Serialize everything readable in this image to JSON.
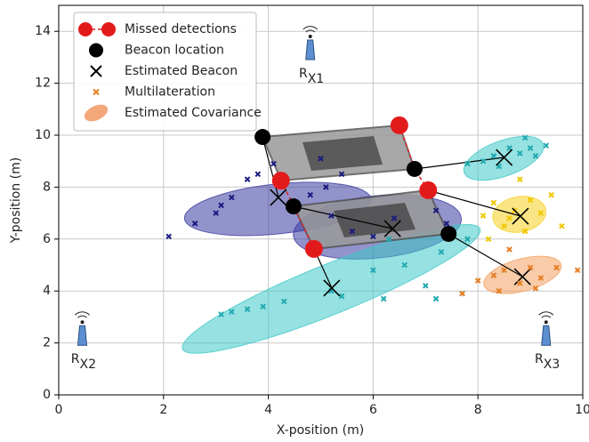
{
  "chart_data": {
    "type": "scatter",
    "xlabel": "X-position (m)",
    "ylabel": "Y-position (m)",
    "xlim": [
      0,
      10
    ],
    "ylim": [
      0,
      15
    ],
    "xticks": [
      0,
      2,
      4,
      6,
      8,
      10
    ],
    "yticks": [
      0,
      2,
      4,
      6,
      8,
      10,
      12,
      14
    ],
    "grid": true,
    "legend": "upper left",
    "series": [
      {
        "name": "Missed detections",
        "color": "#e31a1c",
        "x": [
          6.5,
          4.24,
          7.05,
          4.87
        ],
        "values": [
          10.38,
          8.25,
          7.88,
          5.62
        ]
      },
      {
        "name": "Beacon location",
        "color": "#000000",
        "x": [
          3.89,
          4.48,
          6.79,
          7.44
        ],
        "values": [
          9.93,
          7.26,
          8.7,
          6.2
        ]
      },
      {
        "name": "Estimated Beacon",
        "color": "#000000",
        "x": [
          4.19,
          6.37,
          5.21,
          8.5,
          8.81,
          8.85
        ],
        "values": [
          7.6,
          6.4,
          4.11,
          9.14,
          6.88,
          4.55
        ]
      },
      {
        "name": "Multilateration",
        "color": "#e67e22",
        "x": [
          7.7,
          8.0,
          8.3,
          8.5,
          8.8,
          9.0,
          9.2,
          9.5,
          9.9,
          8.6,
          9.1,
          8.4
        ],
        "values": [
          3.9,
          4.4,
          4.6,
          4.8,
          4.3,
          4.9,
          4.5,
          4.9,
          4.8,
          5.6,
          4.1,
          4.0
        ]
      },
      {
        "name": "Estimated Covariance",
        "color": "#f4a77a",
        "ellipses": [
          {
            "x": 4.18,
            "y": 7.16,
            "rx": 1.79,
            "ry": 0.96,
            "angle": -6,
            "color": "#3b3ba0"
          },
          {
            "x": 6.08,
            "y": 6.47,
            "rx": 1.61,
            "ry": 1.2,
            "angle": -6,
            "color": "#3b3ba0"
          },
          {
            "x": 5.2,
            "y": 4.08,
            "rx": 3.06,
            "ry": 0.96,
            "angle": -22,
            "color": "#40c8c8"
          },
          {
            "x": 8.49,
            "y": 9.11,
            "rx": 0.8,
            "ry": 0.68,
            "angle": -20,
            "color": "#40c8c8"
          },
          {
            "x": 8.79,
            "y": 6.95,
            "rx": 0.51,
            "ry": 0.68,
            "angle": -10,
            "color": "#f5d020"
          },
          {
            "x": 8.85,
            "y": 4.62,
            "rx": 0.76,
            "ry": 0.62,
            "angle": -15,
            "color": "#f4a060"
          }
        ]
      }
    ],
    "clusters": [
      {
        "color": "#1a1a80",
        "x": [
          2.1,
          2.6,
          3.0,
          3.3,
          3.6,
          3.8,
          4.1,
          5.0,
          5.4,
          4.8,
          5.2,
          5.6,
          6.0,
          6.4,
          7.2,
          7.4,
          5.1,
          3.1
        ],
        "values": [
          6.1,
          6.6,
          7.0,
          7.6,
          8.3,
          8.5,
          8.9,
          9.1,
          8.5,
          7.7,
          6.9,
          6.3,
          6.1,
          6.8,
          7.1,
          6.6,
          8.0,
          7.3
        ]
      },
      {
        "color": "#20a8b0",
        "x": [
          3.1,
          3.3,
          3.6,
          3.9,
          4.3,
          5.4,
          6.2,
          7.0,
          7.2,
          7.7,
          6.0,
          6.6,
          7.3,
          7.8,
          5.2,
          6.3
        ],
        "values": [
          3.1,
          3.2,
          3.3,
          3.4,
          3.6,
          3.8,
          3.7,
          4.2,
          3.7,
          3.9,
          4.8,
          5.0,
          5.5,
          6.0,
          4.0,
          6.0
        ]
      },
      {
        "color": "#20a8b0",
        "x": [
          7.8,
          8.1,
          8.3,
          8.6,
          8.8,
          9.0,
          9.3,
          8.9,
          8.4,
          9.1
        ],
        "values": [
          8.9,
          9.0,
          9.2,
          9.5,
          9.3,
          9.5,
          9.6,
          9.9,
          8.8,
          9.2
        ]
      },
      {
        "color": "#f0c800",
        "x": [
          8.1,
          8.3,
          8.5,
          8.7,
          8.9,
          9.0,
          9.2,
          9.4,
          8.2,
          8.8,
          9.6,
          8.6
        ],
        "values": [
          6.9,
          7.4,
          6.5,
          7.1,
          6.3,
          7.5,
          7.0,
          7.7,
          6.0,
          8.3,
          6.5,
          6.8
        ]
      }
    ],
    "antennas": [
      {
        "label": "R",
        "sub": "X1",
        "x": 4.8,
        "y": 13.8
      },
      {
        "label": "R",
        "sub": "X2",
        "x": 0.45,
        "y": 2.8
      },
      {
        "label": "R",
        "sub": "X3",
        "x": 9.3,
        "y": 2.8
      }
    ]
  }
}
